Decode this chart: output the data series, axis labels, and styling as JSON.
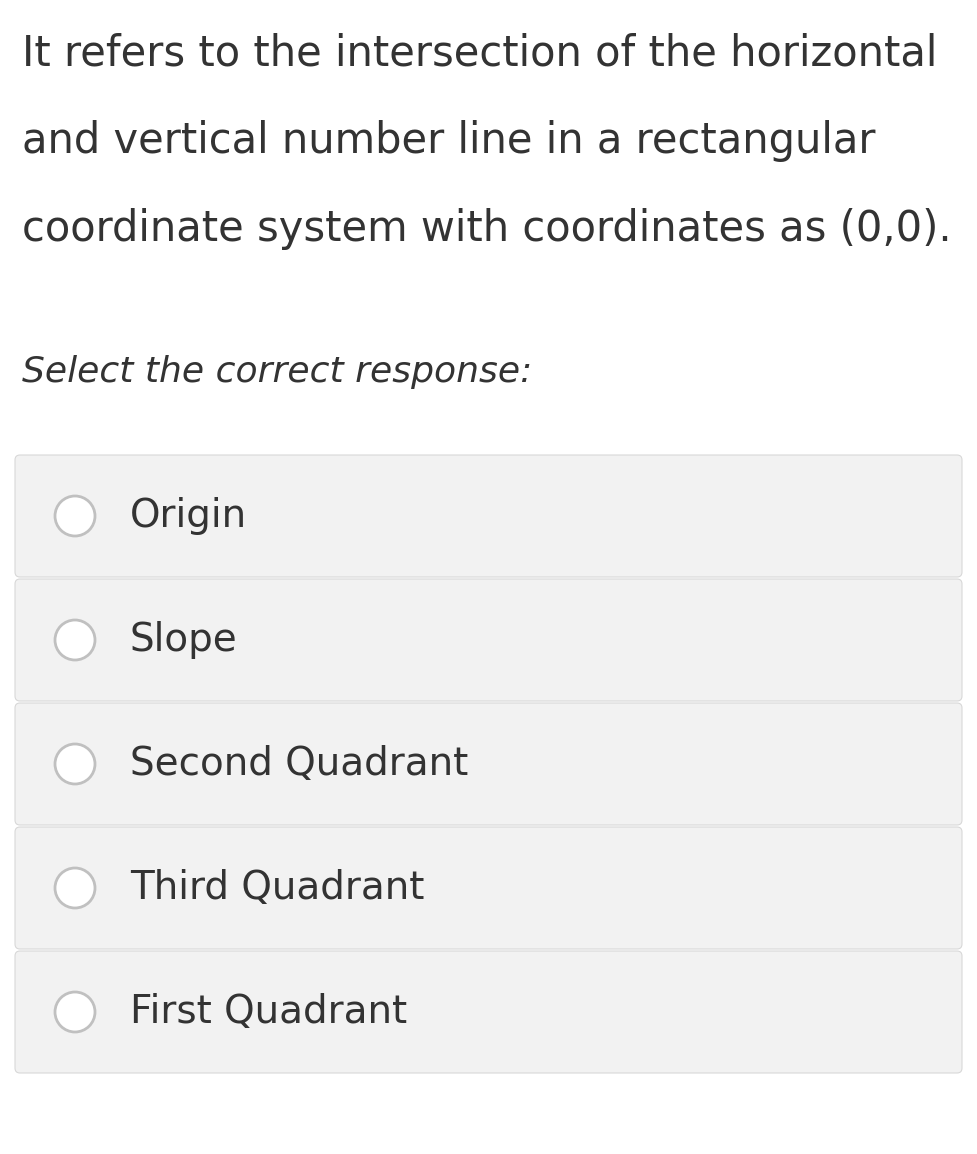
{
  "background_color": "#ffffff",
  "question_lines": [
    "It refers to the intersection of the horizontal",
    "and vertical number line in a rectangular",
    "coordinate system with coordinates as (0,0)."
  ],
  "select_text": "Select the correct response:",
  "options": [
    "Origin",
    "Slope",
    "Second Quadrant",
    "Third Quadrant",
    "First Quadrant"
  ],
  "option_box_color": "#f2f2f2",
  "option_box_edge_color": "#d8d8d8",
  "radio_color": "#c0c0c0",
  "text_color": "#333333",
  "question_font_size": 30,
  "select_font_size": 26,
  "option_font_size": 28,
  "fig_width": 9.77,
  "fig_height": 11.54,
  "dpi": 100
}
